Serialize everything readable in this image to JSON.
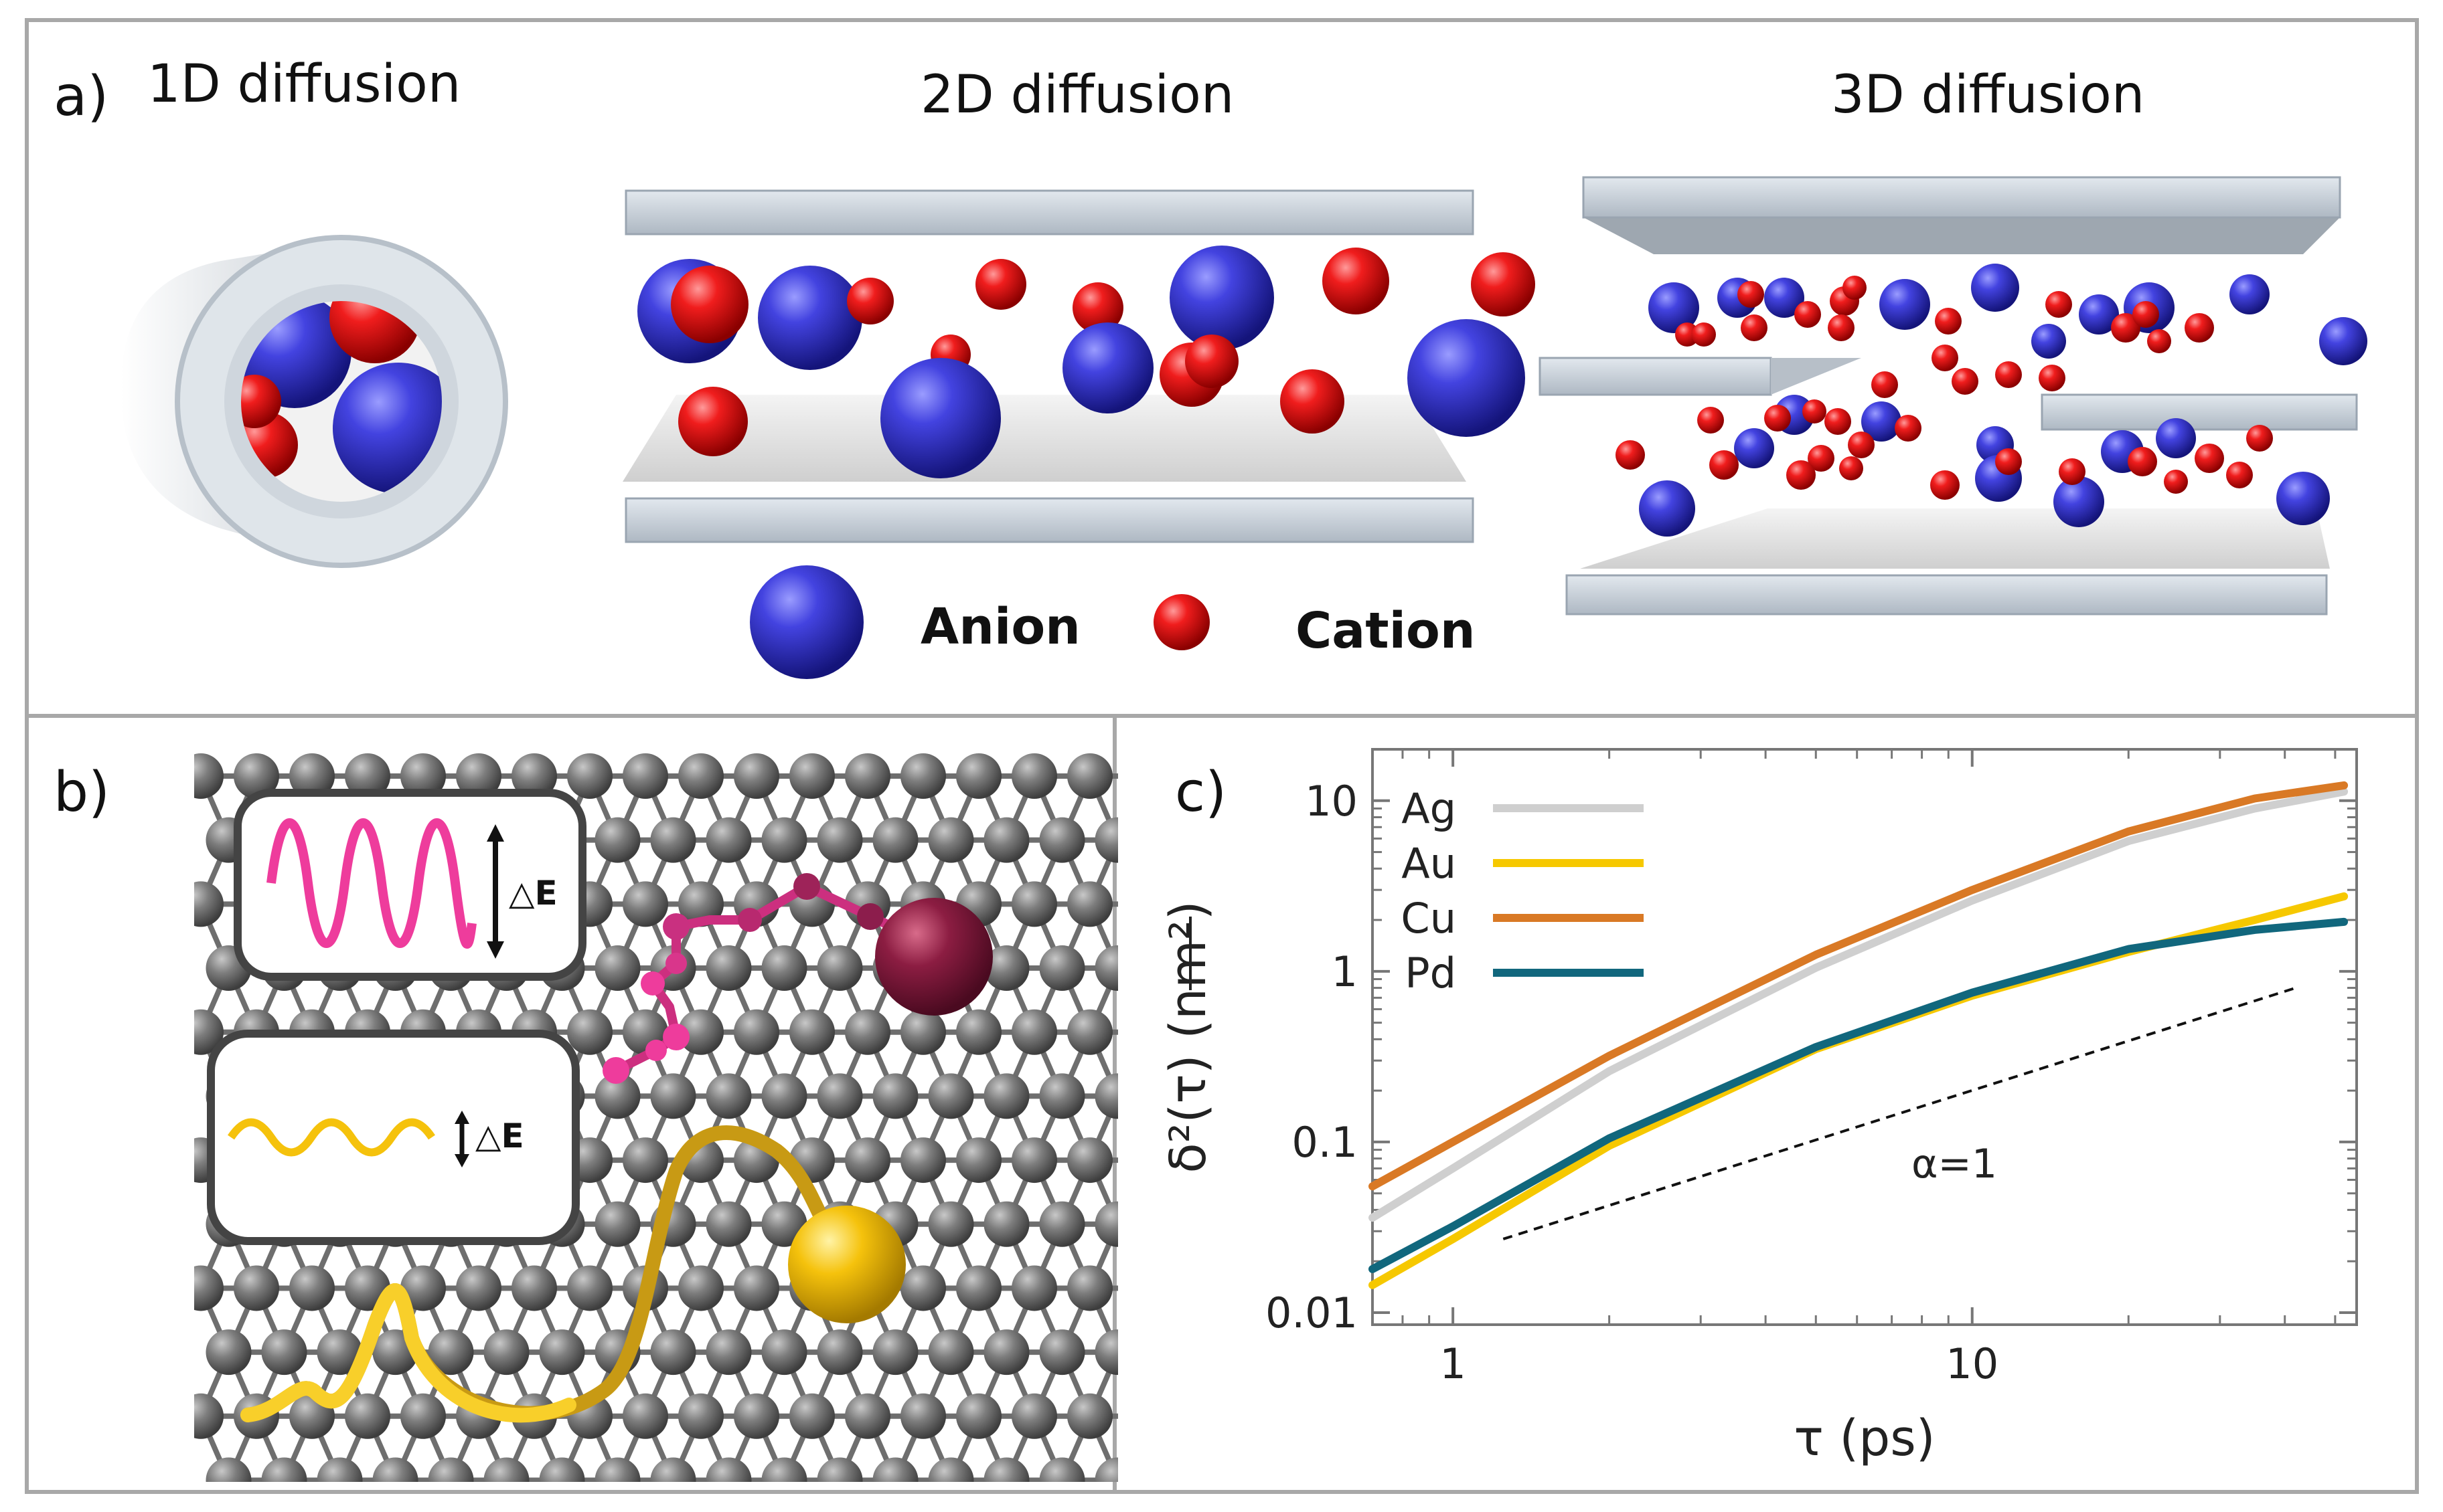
{
  "panel_a": {
    "label": "a)",
    "title_1d": "1D diffusion",
    "title_2d": "2D diffusion",
    "title_3d": "3D diffusion",
    "legend": {
      "anion": "Anion",
      "cation": "Cation"
    },
    "colors": {
      "anion": "#3535d6",
      "cation": "#f01818",
      "slab": "#c9d0d8"
    }
  },
  "panel_b": {
    "label": "b)",
    "high_barrier_label": "△E",
    "low_barrier_label": "△E",
    "colors": {
      "pink": "#ee3c9c",
      "maroon": "#8c1d42",
      "gold": "#f5c20c",
      "lattice": "#7a7a7a"
    }
  },
  "chart_data": {
    "label": "c)",
    "type": "line",
    "x_scale": "log",
    "y_scale": "log",
    "xlabel": "τ (ps)",
    "ylabel": "δ²(τ) (nm²)",
    "xlim": [
      0.7,
      55
    ],
    "ylim": [
      0.0085,
      20
    ],
    "x_ticks": [
      "1",
      "10"
    ],
    "y_ticks": [
      "0.01",
      "0.1",
      "1",
      "10"
    ],
    "annotation": "α=1",
    "series": [
      {
        "name": "Ag",
        "color": "#cfcfcf",
        "x": [
          0.7,
          1,
          2,
          5,
          10,
          20,
          35,
          52
        ],
        "y": [
          0.036,
          0.07,
          0.26,
          1.05,
          2.6,
          5.8,
          9.0,
          11.3
        ]
      },
      {
        "name": "Au",
        "color": "#f6c800",
        "x": [
          0.7,
          1,
          2,
          5,
          10,
          20,
          35,
          52
        ],
        "y": [
          0.0145,
          0.027,
          0.095,
          0.35,
          0.72,
          1.3,
          2.0,
          2.75
        ]
      },
      {
        "name": "Cu",
        "color": "#d97925",
        "x": [
          0.7,
          1,
          2,
          5,
          10,
          20,
          35,
          52
        ],
        "y": [
          0.055,
          0.1,
          0.32,
          1.25,
          3.0,
          6.6,
          10.3,
          12.3
        ]
      },
      {
        "name": "Pd",
        "color": "#11677d",
        "x": [
          0.7,
          1,
          2,
          5,
          10,
          20,
          35,
          52
        ],
        "y": [
          0.018,
          0.032,
          0.105,
          0.36,
          0.75,
          1.35,
          1.75,
          1.95
        ]
      }
    ],
    "reference_line": {
      "x": [
        1.25,
        42
      ],
      "y": [
        0.027,
        0.8
      ],
      "style": "dashed"
    }
  }
}
